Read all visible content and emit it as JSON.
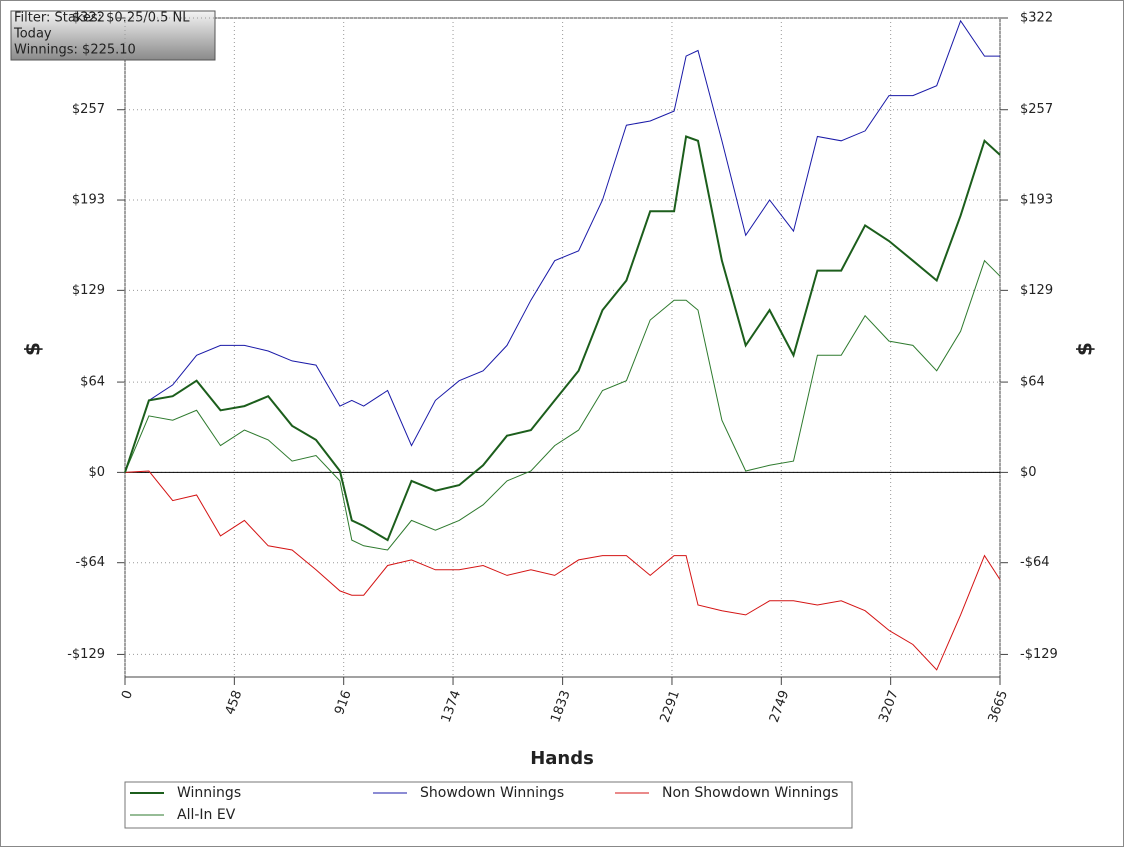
{
  "info": [
    "Filter: Stakes: $0.25/0.5 NL",
    "Today",
    "Winnings: $225.10"
  ],
  "chart_data": {
    "type": "line",
    "xlabel": "Hands",
    "ylabel": "$",
    "y2label": "$",
    "x": [
      0,
      100,
      200,
      300,
      400,
      500,
      600,
      700,
      800,
      900,
      950,
      1000,
      1100,
      1200,
      1300,
      1400,
      1500,
      1600,
      1700,
      1800,
      1900,
      2000,
      2100,
      2200,
      2300,
      2350,
      2400,
      2500,
      2600,
      2700,
      2800,
      2900,
      3000,
      3100,
      3200,
      3300,
      3400,
      3500,
      3600,
      3665
    ],
    "xlim": [
      0,
      3665
    ],
    "xticks": [
      0,
      458,
      916,
      1374,
      1833,
      2291,
      2749,
      3207,
      3665
    ],
    "ylim": [
      -145,
      322
    ],
    "yticks": [
      {
        "value": -129,
        "label": "-$129"
      },
      {
        "value": -64,
        "label": "-$64"
      },
      {
        "value": 0,
        "label": "$0"
      },
      {
        "value": 64,
        "label": "$64"
      },
      {
        "value": 129,
        "label": "$129"
      },
      {
        "value": 193,
        "label": "$193"
      },
      {
        "value": 257,
        "label": "$257"
      },
      {
        "value": 322,
        "label": "$322"
      }
    ],
    "grid": true,
    "series": [
      {
        "name": "Winnings",
        "color": "#1c5e1c",
        "line_width": 2,
        "values": [
          0,
          51,
          54,
          65,
          44,
          47,
          54,
          33,
          23,
          1,
          -34,
          -38,
          -48,
          -6,
          -13,
          -9,
          5,
          26,
          30,
          51,
          72,
          115,
          136,
          185,
          185,
          238,
          235,
          150,
          90,
          115,
          83,
          143,
          143,
          175,
          164,
          150,
          136,
          182,
          235,
          225
        ]
      },
      {
        "name": "All-In EV",
        "color": "#2e7a2e",
        "line_width": 1,
        "values": [
          0,
          40,
          37,
          44,
          19,
          30,
          23,
          8,
          12,
          -6,
          -48,
          -52,
          -55,
          -34,
          -41,
          -34,
          -23,
          -6,
          1,
          19,
          30,
          58,
          65,
          108,
          122,
          122,
          115,
          37,
          1,
          5,
          8,
          83,
          83,
          111,
          93,
          90,
          72,
          100,
          150,
          139
        ]
      },
      {
        "name": "Showdown Winnings",
        "color": "#1a1aa8",
        "line_width": 1,
        "values": [
          0,
          51,
          62,
          83,
          90,
          90,
          86,
          79,
          76,
          47,
          51,
          47,
          58,
          19,
          51,
          65,
          72,
          90,
          122,
          150,
          157,
          193,
          246,
          249,
          256,
          295,
          299,
          235,
          168,
          193,
          171,
          238,
          235,
          242,
          267,
          267,
          274,
          320,
          295,
          295
        ]
      },
      {
        "name": "Non Showdown Winnings",
        "color": "#d41414",
        "line_width": 1,
        "values": [
          0,
          1,
          -20,
          -16,
          -45,
          -34,
          -52,
          -55,
          -69,
          -84,
          -87,
          -87,
          -66,
          -62,
          -69,
          -69,
          -66,
          -73,
          -69,
          -73,
          -62,
          -59,
          -59,
          -73,
          -59,
          -59,
          -94,
          -98,
          -101,
          -91,
          -91,
          -94,
          -91,
          -98,
          -112,
          -122,
          -140,
          -101,
          -59,
          -76
        ]
      }
    ]
  }
}
